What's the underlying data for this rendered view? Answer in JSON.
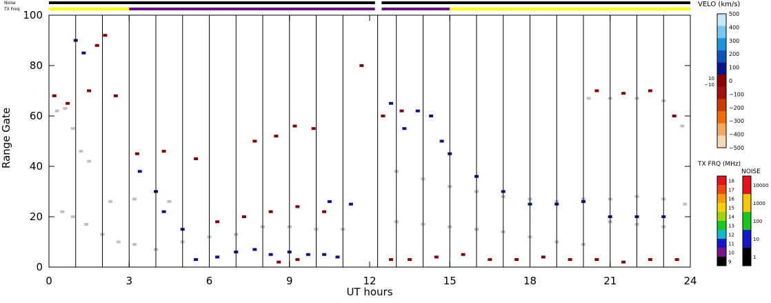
{
  "chart_data": {
    "type": "scatter",
    "description_type": "range-time backscatter plot",
    "xlabel": "UT hours",
    "ylabel": "Range Gate",
    "xlim": [
      0,
      24
    ],
    "ylim": [
      0,
      100
    ],
    "x_ticks": [
      "0",
      "3",
      "6",
      "9",
      "12",
      "15",
      "18",
      "21",
      "24"
    ],
    "y_ticks": [
      "0",
      "20",
      "40",
      "60",
      "80",
      "100"
    ],
    "scan_boundaries_ut": [
      1,
      2,
      3,
      4,
      5,
      6,
      7,
      8,
      9,
      10,
      11,
      12.3,
      13,
      14,
      15,
      16,
      17,
      18,
      19,
      20,
      21,
      22,
      23
    ],
    "top_bars": {
      "noise_label": "Noise",
      "txfreq_label": "TX Freq",
      "noise_segments": [
        {
          "start": 0,
          "end": 12.2,
          "color": "#000000"
        },
        {
          "start": 12.45,
          "end": 24,
          "color": "#000000"
        }
      ],
      "txfreq_segments": [
        {
          "start": 0,
          "end": 3,
          "color": "#ffff00"
        },
        {
          "start": 3,
          "end": 12.2,
          "color": "#6a0f8e"
        },
        {
          "start": 12.45,
          "end": 15,
          "color": "#6a0f8e"
        },
        {
          "start": 15,
          "end": 24,
          "color": "#ffff00"
        }
      ]
    },
    "colorbars": {
      "velocity": {
        "title": "VELO (km/s)",
        "labels": [
          "500",
          "400",
          "300",
          "200",
          "100",
          "0",
          "−100",
          "−200",
          "−300",
          "−400",
          "−500"
        ],
        "small_labels": [
          "10",
          "−10"
        ],
        "colors": [
          "#c6e8ff",
          "#77c7f4",
          "#1f95dc",
          "#0d54b8",
          "#06148a",
          "#8a0000",
          "#a0120a",
          "#cc3b06",
          "#ef6d0d",
          "#f6a860",
          "#f9d9b8"
        ]
      },
      "txfreq": {
        "title": "TX FRQ (MHz)",
        "labels": [
          "18",
          "17",
          "16",
          "15",
          "14",
          "13",
          "12",
          "11",
          "10",
          "9"
        ],
        "colors": [
          "#e8141b",
          "#f04a14",
          "#f59b10",
          "#f7d20a",
          "#9bd60f",
          "#18c81c",
          "#10b8c8",
          "#1418c8",
          "#7b1285",
          "#000000"
        ]
      },
      "noise": {
        "title": "NOISE",
        "labels": [
          "10000",
          "1000",
          "100",
          "10",
          "1"
        ],
        "colors": [
          "#e8141b",
          "#f7c60a",
          "#18c81c",
          "#1418c8",
          "#000000"
        ]
      }
    },
    "series": [
      {
        "name": "ground scatter",
        "color": "#c0c0c0",
        "points": [
          [
            0.3,
            62
          ],
          [
            0.6,
            63
          ],
          [
            0.9,
            55
          ],
          [
            1.2,
            46
          ],
          [
            1.5,
            42
          ],
          [
            0.5,
            22
          ],
          [
            0.9,
            20
          ],
          [
            1.4,
            17
          ],
          [
            2.0,
            13
          ],
          [
            2.6,
            10
          ],
          [
            3.2,
            9
          ],
          [
            4.0,
            7
          ],
          [
            5.0,
            10
          ],
          [
            6.0,
            12
          ],
          [
            7.0,
            13
          ],
          [
            8.0,
            16
          ],
          [
            9.0,
            16
          ],
          [
            10.0,
            15
          ],
          [
            11.0,
            15
          ],
          [
            2.3,
            26
          ],
          [
            3.2,
            27
          ],
          [
            4.5,
            26
          ],
          [
            13.0,
            38
          ],
          [
            14.0,
            35
          ],
          [
            15.0,
            32
          ],
          [
            16.0,
            30
          ],
          [
            17.0,
            28
          ],
          [
            18.0,
            27
          ],
          [
            19.0,
            26
          ],
          [
            20.0,
            27
          ],
          [
            21.0,
            27
          ],
          [
            22.0,
            28
          ],
          [
            23.0,
            27
          ],
          [
            23.8,
            25
          ],
          [
            13.0,
            18
          ],
          [
            14.0,
            17
          ],
          [
            15.0,
            16
          ],
          [
            16.0,
            15
          ],
          [
            17.0,
            14
          ],
          [
            18.0,
            12
          ],
          [
            19.0,
            10
          ],
          [
            20.0,
            9
          ],
          [
            21.0,
            18
          ],
          [
            22.0,
            17
          ],
          [
            23.0,
            16
          ],
          [
            20.2,
            67
          ],
          [
            21.0,
            67
          ],
          [
            22.0,
            67
          ],
          [
            23.0,
            66
          ],
          [
            23.7,
            56
          ]
        ]
      },
      {
        "name": "velocity -100",
        "color": "#8a0000",
        "points": [
          [
            0.2,
            68
          ],
          [
            0.7,
            65
          ],
          [
            1.5,
            70
          ],
          [
            2.5,
            68
          ],
          [
            3.3,
            45
          ],
          [
            4.3,
            46
          ],
          [
            5.5,
            43
          ],
          [
            7.7,
            50
          ],
          [
            8.5,
            52
          ],
          [
            9.2,
            56
          ],
          [
            9.9,
            55
          ],
          [
            11.7,
            80
          ],
          [
            12.5,
            60
          ],
          [
            13.2,
            62
          ],
          [
            1.8,
            88
          ],
          [
            2.1,
            92
          ],
          [
            6.3,
            18
          ],
          [
            7.3,
            20
          ],
          [
            8.3,
            22
          ],
          [
            9.3,
            24
          ],
          [
            10.3,
            22
          ],
          [
            12.8,
            3
          ],
          [
            13.5,
            3
          ],
          [
            14.5,
            4
          ],
          [
            15.5,
            5
          ],
          [
            16.5,
            3
          ],
          [
            17.5,
            3
          ],
          [
            18.5,
            4
          ],
          [
            19.5,
            3
          ],
          [
            20.5,
            3
          ],
          [
            21.5,
            2
          ],
          [
            22.5,
            3
          ],
          [
            23.5,
            3
          ],
          [
            8.6,
            2
          ],
          [
            9.3,
            3
          ],
          [
            20.5,
            70
          ],
          [
            21.5,
            69
          ],
          [
            22.5,
            70
          ],
          [
            23.4,
            60
          ]
        ]
      },
      {
        "name": "velocity 100",
        "color": "#06148a",
        "points": [
          [
            1.0,
            90
          ],
          [
            1.3,
            85
          ],
          [
            3.4,
            38
          ],
          [
            4.0,
            30
          ],
          [
            4.3,
            22
          ],
          [
            5.0,
            15
          ],
          [
            5.5,
            3
          ],
          [
            6.3,
            4
          ],
          [
            7.0,
            6
          ],
          [
            7.7,
            7
          ],
          [
            8.3,
            5
          ],
          [
            9.0,
            6
          ],
          [
            9.7,
            5
          ],
          [
            10.3,
            5
          ],
          [
            10.8,
            4
          ],
          [
            12.8,
            65
          ],
          [
            13.3,
            55
          ],
          [
            13.8,
            62
          ],
          [
            14.3,
            60
          ],
          [
            14.7,
            50
          ],
          [
            15.0,
            45
          ],
          [
            16.0,
            36
          ],
          [
            17.0,
            30
          ],
          [
            18.0,
            25
          ],
          [
            19.0,
            25
          ],
          [
            20.0,
            26
          ],
          [
            21.0,
            20
          ],
          [
            22.0,
            20
          ],
          [
            23.0,
            20
          ],
          [
            10.5,
            26
          ],
          [
            11.3,
            25
          ]
        ]
      }
    ]
  }
}
